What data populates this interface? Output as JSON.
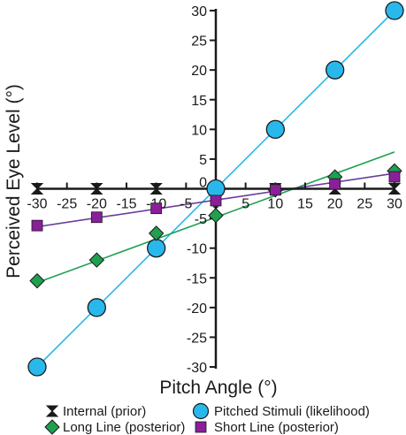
{
  "chart_data": {
    "type": "line",
    "xlabel": "Pitch Angle (°)",
    "ylabel": "Perceived Eye Level (°)",
    "xlim": [
      -30,
      30
    ],
    "ylim": [
      -30,
      30
    ],
    "xticks": [
      -30,
      -25,
      -20,
      -15,
      -10,
      -5,
      0,
      5,
      10,
      15,
      20,
      25,
      30
    ],
    "yticks": [
      -30,
      -25,
      -20,
      -15,
      -10,
      -5,
      0,
      5,
      10,
      15,
      20,
      25,
      30
    ],
    "legend_position": "bottom",
    "grid": false,
    "series": [
      {
        "name": "Internal (prior)",
        "marker": "hourglass",
        "color": "#1a1a1a",
        "line_color": "#1a1a1a",
        "x": [
          -30,
          -20,
          -10,
          0,
          10,
          20,
          30
        ],
        "y": [
          0,
          0,
          0,
          0,
          0,
          0,
          0
        ],
        "line": [
          [
            -30,
            0
          ],
          [
            30,
            0
          ]
        ]
      },
      {
        "name": "Pitched Stimuli (likelihood)",
        "marker": "circle",
        "color": "#29b8ec",
        "line_color": "#29b8ec",
        "x": [
          -30,
          -20,
          -10,
          0,
          10,
          20,
          30
        ],
        "y": [
          -30,
          -20,
          -10,
          0,
          10,
          20,
          30
        ],
        "line": [
          [
            -30,
            -30
          ],
          [
            30,
            30
          ]
        ]
      },
      {
        "name": "Long Line (posterior)",
        "marker": "diamond",
        "color": "#1ea04f",
        "line_color": "#1ea04f",
        "x": [
          -30,
          -20,
          -10,
          0,
          10,
          20,
          30
        ],
        "y": [
          -15.5,
          -12,
          -7.5,
          -4.5,
          -0.2,
          2,
          3
        ],
        "line": [
          [
            -30,
            -15.8
          ],
          [
            30,
            6.2
          ]
        ]
      },
      {
        "name": "Short Line (posterior)",
        "marker": "square",
        "color": "#8a1f9a",
        "line_color": "#6a3d9a",
        "x": [
          -30,
          -20,
          -10,
          0,
          10,
          20,
          30
        ],
        "y": [
          -6.2,
          -4.8,
          -3.3,
          -2,
          -0.2,
          0.8,
          2
        ],
        "line": [
          [
            -30,
            -6.4
          ],
          [
            30,
            2.6
          ]
        ]
      }
    ]
  }
}
